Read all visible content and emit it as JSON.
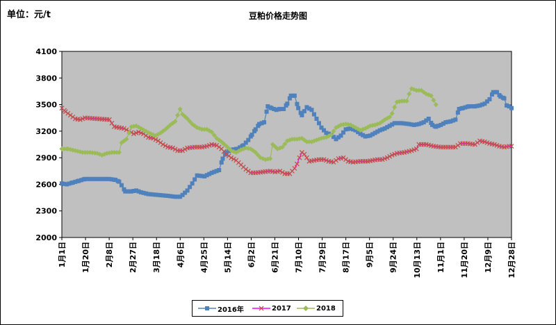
{
  "unit_label": "单位：元/t",
  "chart_data": {
    "type": "line",
    "title": "豆粕价格走势图",
    "xlabel": "",
    "ylabel": "",
    "ylim": [
      2000,
      4100
    ],
    "yticks": [
      2000,
      2300,
      2600,
      2900,
      3200,
      3500,
      3800,
      4100
    ],
    "grid": false,
    "legend_position": "bottom",
    "x_tick_labels": [
      "1月1日",
      "1月20日",
      "2月8日",
      "2月27日",
      "3月18日",
      "4月6日",
      "4月25日",
      "5月14日",
      "6月2日",
      "6月21日",
      "7月10日",
      "7月29日",
      "8月17日",
      "9月5日",
      "9月24日",
      "10月13日",
      "11月1日",
      "11月20日",
      "12月9日",
      "12月28日"
    ],
    "colors": {
      "plot_bg": "#C0C0C0",
      "2016": "#4F81BD",
      "2017": "#C0504D",
      "2018": "#9BBB59"
    },
    "series": [
      {
        "name": "2016年",
        "marker": "square",
        "points": [
          [
            1,
            2610
          ],
          [
            5,
            2600
          ],
          [
            10,
            2620
          ],
          [
            15,
            2640
          ],
          [
            20,
            2660
          ],
          [
            30,
            2660
          ],
          [
            40,
            2660
          ],
          [
            45,
            2650
          ],
          [
            48,
            2630
          ],
          [
            50,
            2590
          ],
          [
            53,
            2520
          ],
          [
            58,
            2520
          ],
          [
            62,
            2530
          ],
          [
            66,
            2510
          ],
          [
            72,
            2490
          ],
          [
            80,
            2480
          ],
          [
            88,
            2470
          ],
          [
            94,
            2460
          ],
          [
            98,
            2460
          ],
          [
            100,
            2480
          ],
          [
            104,
            2530
          ],
          [
            108,
            2610
          ],
          [
            112,
            2700
          ],
          [
            118,
            2690
          ],
          [
            124,
            2730
          ],
          [
            130,
            2760
          ],
          [
            133,
            2890
          ],
          [
            136,
            2960
          ],
          [
            140,
            2990
          ],
          [
            145,
            3000
          ],
          [
            150,
            3040
          ],
          [
            154,
            3100
          ],
          [
            157,
            3160
          ],
          [
            160,
            3220
          ],
          [
            163,
            3280
          ],
          [
            167,
            3300
          ],
          [
            170,
            3480
          ],
          [
            173,
            3460
          ],
          [
            177,
            3440
          ],
          [
            180,
            3450
          ],
          [
            183,
            3450
          ],
          [
            186,
            3510
          ],
          [
            189,
            3600
          ],
          [
            192,
            3600
          ],
          [
            195,
            3460
          ],
          [
            198,
            3380
          ],
          [
            202,
            3470
          ],
          [
            206,
            3440
          ],
          [
            210,
            3340
          ],
          [
            214,
            3240
          ],
          [
            218,
            3180
          ],
          [
            222,
            3160
          ],
          [
            226,
            3110
          ],
          [
            230,
            3150
          ],
          [
            234,
            3220
          ],
          [
            238,
            3230
          ],
          [
            242,
            3210
          ],
          [
            246,
            3170
          ],
          [
            250,
            3140
          ],
          [
            254,
            3150
          ],
          [
            258,
            3180
          ],
          [
            262,
            3210
          ],
          [
            266,
            3230
          ],
          [
            270,
            3260
          ],
          [
            274,
            3290
          ],
          [
            280,
            3290
          ],
          [
            286,
            3280
          ],
          [
            290,
            3270
          ],
          [
            294,
            3280
          ],
          [
            298,
            3300
          ],
          [
            302,
            3340
          ],
          [
            305,
            3270
          ],
          [
            308,
            3250
          ],
          [
            312,
            3270
          ],
          [
            316,
            3300
          ],
          [
            320,
            3310
          ],
          [
            324,
            3330
          ],
          [
            327,
            3450
          ],
          [
            330,
            3460
          ],
          [
            335,
            3480
          ],
          [
            340,
            3480
          ],
          [
            344,
            3490
          ],
          [
            348,
            3510
          ],
          [
            352,
            3560
          ],
          [
            355,
            3640
          ],
          [
            358,
            3640
          ],
          [
            361,
            3590
          ],
          [
            364,
            3570
          ],
          [
            366,
            3490
          ],
          [
            368,
            3480
          ],
          [
            370,
            3460
          ]
        ]
      },
      {
        "name": "2017",
        "marker": "x",
        "points": [
          [
            1,
            3460
          ],
          [
            4,
            3420
          ],
          [
            8,
            3380
          ],
          [
            12,
            3340
          ],
          [
            16,
            3330
          ],
          [
            20,
            3350
          ],
          [
            30,
            3340
          ],
          [
            40,
            3330
          ],
          [
            44,
            3250
          ],
          [
            48,
            3240
          ],
          [
            52,
            3230
          ],
          [
            56,
            3200
          ],
          [
            60,
            3170
          ],
          [
            64,
            3190
          ],
          [
            68,
            3170
          ],
          [
            72,
            3130
          ],
          [
            76,
            3120
          ],
          [
            80,
            3090
          ],
          [
            84,
            3050
          ],
          [
            88,
            3020
          ],
          [
            92,
            3010
          ],
          [
            96,
            2980
          ],
          [
            100,
            2980
          ],
          [
            104,
            3010
          ],
          [
            110,
            3020
          ],
          [
            116,
            3020
          ],
          [
            120,
            3030
          ],
          [
            124,
            3050
          ],
          [
            128,
            3040
          ],
          [
            132,
            3000
          ],
          [
            136,
            2940
          ],
          [
            140,
            2900
          ],
          [
            144,
            2870
          ],
          [
            148,
            2820
          ],
          [
            152,
            2770
          ],
          [
            156,
            2730
          ],
          [
            160,
            2730
          ],
          [
            166,
            2740
          ],
          [
            172,
            2750
          ],
          [
            176,
            2740
          ],
          [
            180,
            2750
          ],
          [
            184,
            2720
          ],
          [
            188,
            2720
          ],
          [
            192,
            2780
          ],
          [
            194,
            2830
          ],
          [
            196,
            2900
          ],
          [
            198,
            2960
          ],
          [
            200,
            2940
          ],
          [
            204,
            2860
          ],
          [
            208,
            2870
          ],
          [
            212,
            2880
          ],
          [
            216,
            2880
          ],
          [
            220,
            2860
          ],
          [
            224,
            2850
          ],
          [
            228,
            2890
          ],
          [
            232,
            2900
          ],
          [
            236,
            2860
          ],
          [
            240,
            2850
          ],
          [
            246,
            2860
          ],
          [
            252,
            2860
          ],
          [
            256,
            2870
          ],
          [
            260,
            2880
          ],
          [
            264,
            2880
          ],
          [
            268,
            2900
          ],
          [
            272,
            2930
          ],
          [
            276,
            2950
          ],
          [
            282,
            2960
          ],
          [
            288,
            2980
          ],
          [
            292,
            3000
          ],
          [
            294,
            3050
          ],
          [
            300,
            3050
          ],
          [
            306,
            3030
          ],
          [
            312,
            3020
          ],
          [
            318,
            3020
          ],
          [
            324,
            3020
          ],
          [
            328,
            3060
          ],
          [
            334,
            3060
          ],
          [
            340,
            3050
          ],
          [
            344,
            3090
          ],
          [
            348,
            3080
          ],
          [
            352,
            3060
          ],
          [
            356,
            3050
          ],
          [
            360,
            3030
          ],
          [
            364,
            3020
          ],
          [
            368,
            3030
          ],
          [
            370,
            3030
          ]
        ]
      },
      {
        "name": "2018",
        "marker": "diamond",
        "points": [
          [
            1,
            3000
          ],
          [
            6,
            3000
          ],
          [
            12,
            2980
          ],
          [
            18,
            2960
          ],
          [
            24,
            2960
          ],
          [
            30,
            2950
          ],
          [
            34,
            2930
          ],
          [
            38,
            2950
          ],
          [
            42,
            2960
          ],
          [
            46,
            2960
          ],
          [
            48,
            2960
          ],
          [
            50,
            3070
          ],
          [
            54,
            3110
          ],
          [
            58,
            3250
          ],
          [
            62,
            3260
          ],
          [
            66,
            3230
          ],
          [
            70,
            3200
          ],
          [
            74,
            3170
          ],
          [
            78,
            3150
          ],
          [
            82,
            3180
          ],
          [
            86,
            3220
          ],
          [
            90,
            3270
          ],
          [
            94,
            3310
          ],
          [
            98,
            3450
          ],
          [
            100,
            3390
          ],
          [
            104,
            3340
          ],
          [
            108,
            3280
          ],
          [
            112,
            3240
          ],
          [
            116,
            3220
          ],
          [
            120,
            3220
          ],
          [
            124,
            3190
          ],
          [
            128,
            3120
          ],
          [
            132,
            3080
          ],
          [
            136,
            3030
          ],
          [
            140,
            2980
          ],
          [
            144,
            2960
          ],
          [
            148,
            2990
          ],
          [
            152,
            3010
          ],
          [
            156,
            3000
          ],
          [
            160,
            2960
          ],
          [
            164,
            2900
          ],
          [
            168,
            2880
          ],
          [
            172,
            2890
          ],
          [
            174,
            3050
          ],
          [
            178,
            3000
          ],
          [
            182,
            3020
          ],
          [
            186,
            3090
          ],
          [
            190,
            3110
          ],
          [
            194,
            3110
          ],
          [
            198,
            3120
          ],
          [
            202,
            3080
          ],
          [
            206,
            3080
          ],
          [
            210,
            3100
          ],
          [
            214,
            3120
          ],
          [
            218,
            3130
          ],
          [
            222,
            3160
          ],
          [
            226,
            3240
          ],
          [
            230,
            3270
          ],
          [
            234,
            3280
          ],
          [
            238,
            3270
          ],
          [
            242,
            3240
          ],
          [
            246,
            3210
          ],
          [
            250,
            3230
          ],
          [
            254,
            3260
          ],
          [
            258,
            3270
          ],
          [
            262,
            3290
          ],
          [
            266,
            3330
          ],
          [
            270,
            3360
          ],
          [
            272,
            3400
          ],
          [
            274,
            3470
          ],
          [
            276,
            3530
          ],
          [
            280,
            3540
          ],
          [
            284,
            3540
          ],
          [
            286,
            3620
          ],
          [
            288,
            3680
          ],
          [
            292,
            3660
          ],
          [
            296,
            3660
          ],
          [
            300,
            3620
          ],
          [
            304,
            3600
          ],
          [
            306,
            3550
          ],
          [
            308,
            3500
          ]
        ]
      }
    ]
  }
}
